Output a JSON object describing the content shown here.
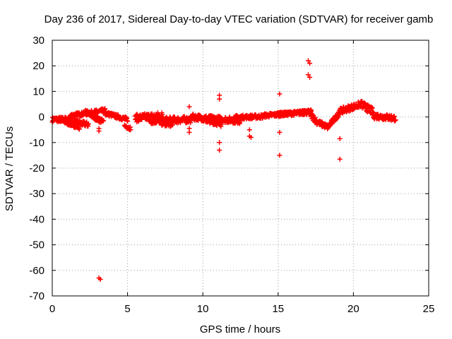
{
  "chart_data": {
    "type": "scatter",
    "title": "Day 236 of 2017, Sidereal Day-to-day VTEC variation (SDTVAR) for receiver gamb",
    "xlabel": "GPS time / hours",
    "ylabel": "SDTVAR / TECUs",
    "xlim": [
      0,
      25
    ],
    "ylim": [
      -70,
      30
    ],
    "xticks": [
      0,
      5,
      10,
      15,
      20,
      25
    ],
    "yticks": [
      30,
      20,
      10,
      0,
      -10,
      -20,
      -30,
      -40,
      -50,
      -60,
      -70
    ],
    "grid": true,
    "marker": "+",
    "series": [
      {
        "name": "SDTVAR",
        "color": "#ff0000",
        "bands": [
          {
            "x0": 0.0,
            "x1": 1.2,
            "y0": -1.0,
            "y1": -1.0,
            "spread": 1.0
          },
          {
            "x0": 0.4,
            "x1": 1.8,
            "y0": -1.0,
            "y1": -4.0,
            "spread": 0.8
          },
          {
            "x0": 1.0,
            "x1": 2.4,
            "y0": -1.5,
            "y1": -3.0,
            "spread": 1.0
          },
          {
            "x0": 1.2,
            "x1": 3.5,
            "y0": 0.5,
            "y1": 2.5,
            "spread": 0.8
          },
          {
            "x0": 2.2,
            "x1": 3.4,
            "y0": 2.0,
            "y1": -2.0,
            "spread": 1.0
          },
          {
            "x0": 3.5,
            "x1": 5.0,
            "y0": 1.5,
            "y1": -1.0,
            "spread": 0.8
          },
          {
            "x0": 4.8,
            "x1": 5.2,
            "y0": -3.5,
            "y1": -4.5,
            "spread": 0.6
          },
          {
            "x0": 5.5,
            "x1": 7.3,
            "y0": -0.5,
            "y1": 0.5,
            "spread": 1.5
          },
          {
            "x0": 6.5,
            "x1": 9.2,
            "y0": -1.5,
            "y1": -1.0,
            "spread": 1.3
          },
          {
            "x0": 7.2,
            "x1": 8.0,
            "y0": -2.0,
            "y1": -3.0,
            "spread": 1.2
          },
          {
            "x0": 9.2,
            "x1": 12.5,
            "y0": 0.0,
            "y1": -1.5,
            "spread": 1.2
          },
          {
            "x0": 10.0,
            "x1": 11.2,
            "y0": -1.0,
            "y1": -3.0,
            "spread": 0.8
          },
          {
            "x0": 12.0,
            "x1": 14.0,
            "y0": -0.2,
            "y1": 0.2,
            "spread": 0.8
          },
          {
            "x0": 14.0,
            "x1": 17.0,
            "y0": 0.5,
            "y1": 1.8,
            "spread": 0.8
          },
          {
            "x0": 15.0,
            "x1": 17.2,
            "y0": 1.2,
            "y1": 2.2,
            "spread": 0.6
          },
          {
            "x0": 17.0,
            "x1": 17.6,
            "y0": 2.0,
            "y1": -2.0,
            "spread": 1.2
          },
          {
            "x0": 17.6,
            "x1": 18.3,
            "y0": -2.0,
            "y1": -4.0,
            "spread": 1.0
          },
          {
            "x0": 18.3,
            "x1": 19.0,
            "y0": -4.0,
            "y1": 1.0,
            "spread": 1.0
          },
          {
            "x0": 19.0,
            "x1": 20.5,
            "y0": 2.0,
            "y1": 5.0,
            "spread": 1.2
          },
          {
            "x0": 20.5,
            "x1": 21.3,
            "y0": 5.0,
            "y1": 2.0,
            "spread": 1.5
          },
          {
            "x0": 21.3,
            "x1": 22.8,
            "y0": 0.5,
            "y1": -0.5,
            "spread": 1.2
          }
        ],
        "points": [
          [
            3.1,
            -4.5
          ],
          [
            3.1,
            -5.5
          ],
          [
            3.1,
            -63.0
          ],
          [
            3.2,
            -63.5
          ],
          [
            9.1,
            4.0
          ],
          [
            9.1,
            -4.5
          ],
          [
            9.1,
            -6.0
          ],
          [
            11.1,
            8.5
          ],
          [
            11.1,
            7.0
          ],
          [
            11.1,
            -10.0
          ],
          [
            11.1,
            -13.0
          ],
          [
            13.1,
            -5.0
          ],
          [
            13.1,
            -7.5
          ],
          [
            13.2,
            -8.0
          ],
          [
            15.1,
            9.0
          ],
          [
            15.1,
            -6.0
          ],
          [
            15.1,
            -15.0
          ],
          [
            17.0,
            22.0
          ],
          [
            17.1,
            21.0
          ],
          [
            17.0,
            16.5
          ],
          [
            17.1,
            15.5
          ],
          [
            19.1,
            -8.5
          ],
          [
            19.1,
            -16.5
          ]
        ]
      }
    ]
  }
}
